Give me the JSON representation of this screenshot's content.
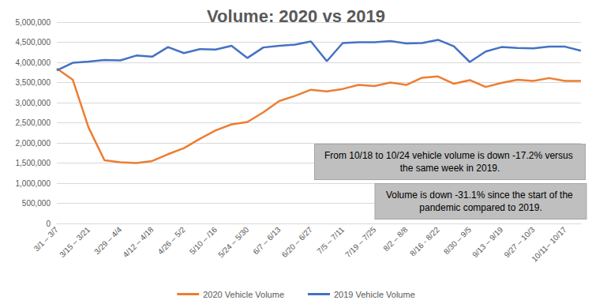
{
  "chart_data": {
    "type": "line",
    "title": "Volume: 2020 vs 2019",
    "categories": [
      "3/1 – 3/7",
      null,
      "3/15 – 3/21",
      null,
      "3/29 – 4/4",
      null,
      "4/12 – 4/18",
      null,
      "4/26 – 5/2",
      null,
      "5/10 – /16",
      null,
      "5/24 – 5/30",
      null,
      "6/7 – 6/13",
      null,
      "6/20 – 6/27",
      null,
      "7/5 – 7/11",
      null,
      "7/19 – 7/25",
      null,
      "8/2 – 8/8",
      null,
      "8/16 - 8/22",
      null,
      "8/30 – 9/5",
      null,
      "9/13 – 9/19",
      null,
      "9/27 – 10/3",
      null,
      "10/11– 10/17",
      null
    ],
    "series": [
      {
        "name": "2020 Vehicle Volume",
        "color": "#ed7d31",
        "values": [
          3850000,
          3570000,
          2380000,
          1570000,
          1520000,
          1500000,
          1550000,
          1720000,
          1870000,
          2100000,
          2310000,
          2460000,
          2520000,
          2760000,
          3040000,
          3170000,
          3320000,
          3280000,
          3340000,
          3440000,
          3410000,
          3500000,
          3440000,
          3620000,
          3650000,
          3470000,
          3560000,
          3390000,
          3490000,
          3570000,
          3540000,
          3610000,
          3540000,
          3540000
        ]
      },
      {
        "name": "2019 Vehicle Volume",
        "color": "#4472c4",
        "values": [
          3800000,
          3990000,
          4020000,
          4060000,
          4050000,
          4170000,
          4140000,
          4380000,
          4230000,
          4330000,
          4320000,
          4410000,
          4110000,
          4370000,
          4410000,
          4440000,
          4520000,
          4030000,
          4480000,
          4500000,
          4500000,
          4530000,
          4470000,
          4480000,
          4560000,
          4400000,
          4010000,
          4270000,
          4380000,
          4360000,
          4350000,
          4390000,
          4390000,
          4290000
        ]
      }
    ],
    "ylim": [
      0,
      5000000
    ],
    "yticks": [
      0,
      {
        "value": 500000,
        "label": "500,000"
      },
      {
        "value": 1000000,
        "label": "1,000,000"
      },
      {
        "value": 1500000,
        "label": "1,500,000"
      },
      {
        "value": 2000000,
        "label": "2,000,000"
      },
      {
        "value": 2500000,
        "label": "2,500,000"
      },
      {
        "value": 3000000,
        "label": "3,000,000"
      },
      {
        "value": 3500000,
        "label": "3,500,000"
      },
      {
        "value": 4000000,
        "label": "4,000,000"
      },
      {
        "value": 4500000,
        "label": "4,500,000"
      },
      {
        "value": 5000000,
        "label": "5,000,000"
      }
    ],
    "annotations": [
      "From 10/18 to 10/24 vehicle volume is down -17.2% versus the same week in 2019.",
      "Volume is down -31.1% since the start of the pandemic compared to 2019."
    ],
    "grid": true,
    "legend": "bottom"
  }
}
